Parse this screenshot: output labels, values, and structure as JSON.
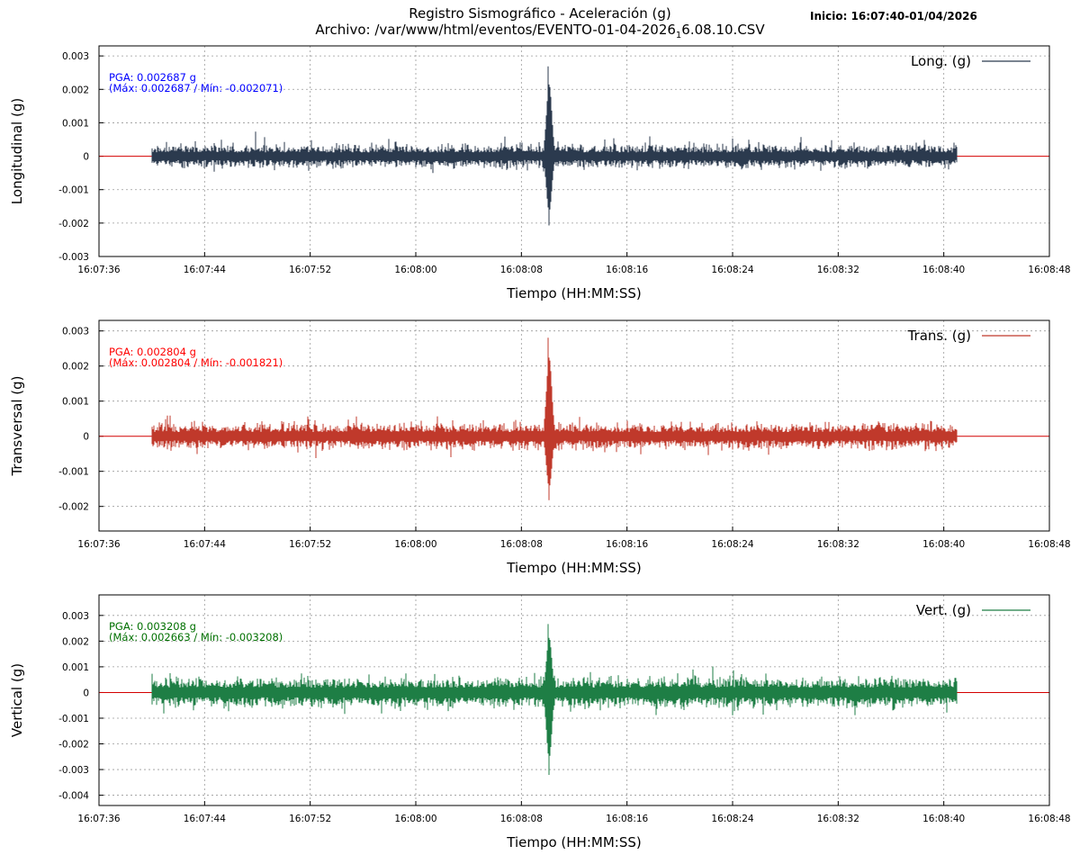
{
  "header": {
    "title_line1": "Registro Sismográfico - Aceleración (g)",
    "title_line2_prefix": "Archivo: /var/www/html/eventos/EVENTO-01-04-2026",
    "title_line2_sub": "1",
    "title_line2_suffix": "6.08.10.CSV",
    "start": "Inicio: 16:07:40-01/04/2026"
  },
  "colors": {
    "longitudinal": "#2b3a4e",
    "transversal": "#c0392b",
    "vertical": "#1e7e45",
    "zero_line": "#d40000",
    "grid": "#9a9a9a",
    "pga_long": "#0000ff",
    "pga_trans": "#ff0000",
    "pga_vert": "#007000"
  },
  "chart_data": [
    {
      "type": "line",
      "title": "",
      "xlabel": "Tiempo (HH:MM:SS)",
      "ylabel": "Longitudinal (g)",
      "legend": "Long. (g)",
      "legend_position": "top-right",
      "grid": true,
      "x_ticks": [
        "16:07:36",
        "16:07:44",
        "16:07:52",
        "16:08:00",
        "16:08:08",
        "16:08:16",
        "16:08:24",
        "16:08:32",
        "16:08:40",
        "16:08:48"
      ],
      "y_ticks": [
        "0.003",
        "0.002",
        "0.001",
        "0",
        "-0.001",
        "-0.002",
        "-0.003"
      ],
      "xlim": [
        "16:07:36",
        "16:08:48"
      ],
      "ylim": [
        -0.003,
        0.0033
      ],
      "record_start": "16:07:40",
      "record_end": "16:08:41",
      "event_time": "16:08:10",
      "pga": 0.002687,
      "max": 0.002687,
      "min": -0.002071,
      "noise_amplitude": 0.00045,
      "annotation_line1": "PGA: 0.002687 g",
      "annotation_line2": "(Máx: 0.002687 / Mín: -0.002071)"
    },
    {
      "type": "line",
      "title": "",
      "xlabel": "Tiempo (HH:MM:SS)",
      "ylabel": "Transversal (g)",
      "legend": "Trans. (g)",
      "legend_position": "top-right",
      "grid": true,
      "x_ticks": [
        "16:07:36",
        "16:07:44",
        "16:07:52",
        "16:08:00",
        "16:08:08",
        "16:08:16",
        "16:08:24",
        "16:08:32",
        "16:08:40",
        "16:08:48"
      ],
      "y_ticks": [
        "0.003",
        "0.002",
        "0.001",
        "0",
        "-0.001",
        "-0.002"
      ],
      "xlim": [
        "16:07:36",
        "16:08:48"
      ],
      "ylim": [
        -0.0027,
        0.0033
      ],
      "record_start": "16:07:40",
      "record_end": "16:08:41",
      "event_time": "16:08:10",
      "pga": 0.002804,
      "max": 0.002804,
      "min": -0.001821,
      "noise_amplitude": 0.00048,
      "annotation_line1": "PGA: 0.002804 g",
      "annotation_line2": "(Máx: 0.002804 / Mín: -0.001821)"
    },
    {
      "type": "line",
      "title": "",
      "xlabel": "Tiempo (HH:MM:SS)",
      "ylabel": "Vertical (g)",
      "legend": "Vert. (g)",
      "legend_position": "top-right",
      "grid": true,
      "x_ticks": [
        "16:07:36",
        "16:07:44",
        "16:07:52",
        "16:08:00",
        "16:08:08",
        "16:08:16",
        "16:08:24",
        "16:08:32",
        "16:08:40",
        "16:08:48"
      ],
      "y_ticks": [
        "0.003",
        "0.002",
        "0.001",
        "0",
        "-0.001",
        "-0.002",
        "-0.003",
        "-0.004"
      ],
      "xlim": [
        "16:07:36",
        "16:08:48"
      ],
      "ylim": [
        -0.0044,
        0.0038
      ],
      "record_start": "16:07:40",
      "record_end": "16:08:41",
      "event_time": "16:08:10",
      "pga": 0.003208,
      "max": 0.002663,
      "min": -0.003208,
      "noise_amplitude": 0.00075,
      "annotation_line1": "PGA: 0.003208 g",
      "annotation_line2": "(Máx: 0.002663 / Mín: -0.003208)"
    }
  ]
}
